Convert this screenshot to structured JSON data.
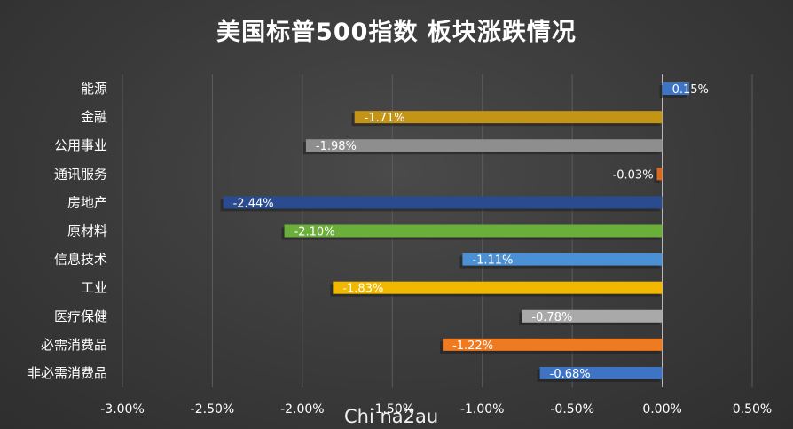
{
  "chart_data": {
    "type": "bar",
    "orientation": "horizontal",
    "title": "美国标普500指数 板块涨跌情况",
    "categories": [
      "能源",
      "金融",
      "公用事业",
      "通讯服务",
      "房地产",
      "原材料",
      "信息技术",
      "工业",
      "医疗保健",
      "必需消费品",
      "非必需消费品"
    ],
    "values": [
      0.15,
      -1.71,
      -1.98,
      -0.03,
      -2.44,
      -2.1,
      -1.11,
      -1.83,
      -0.78,
      -1.22,
      -0.68
    ],
    "value_labels": [
      "0.15%",
      "-1.71%",
      "-1.98%",
      "-0.03%",
      "-2.44%",
      "-2.10%",
      "-1.11%",
      "-1.83%",
      "-0.78%",
      "-1.22%",
      "-0.68%"
    ],
    "colors": [
      "#3e74c3",
      "#c49514",
      "#8e8e8e",
      "#d9691e",
      "#2a4c8f",
      "#6aaf3a",
      "#4b90d4",
      "#f0b800",
      "#a9a9a9",
      "#ee7a22",
      "#3e74c3"
    ],
    "x_ticks": [
      "-3.00%",
      "-2.50%",
      "-2.00%",
      "-1.50%",
      "-1.00%",
      "-0.50%",
      "0.00%",
      "0.50%"
    ],
    "xlim": [
      -3.0,
      0.5
    ],
    "grid": true,
    "legend": "none"
  },
  "watermark": "Chi na2au"
}
